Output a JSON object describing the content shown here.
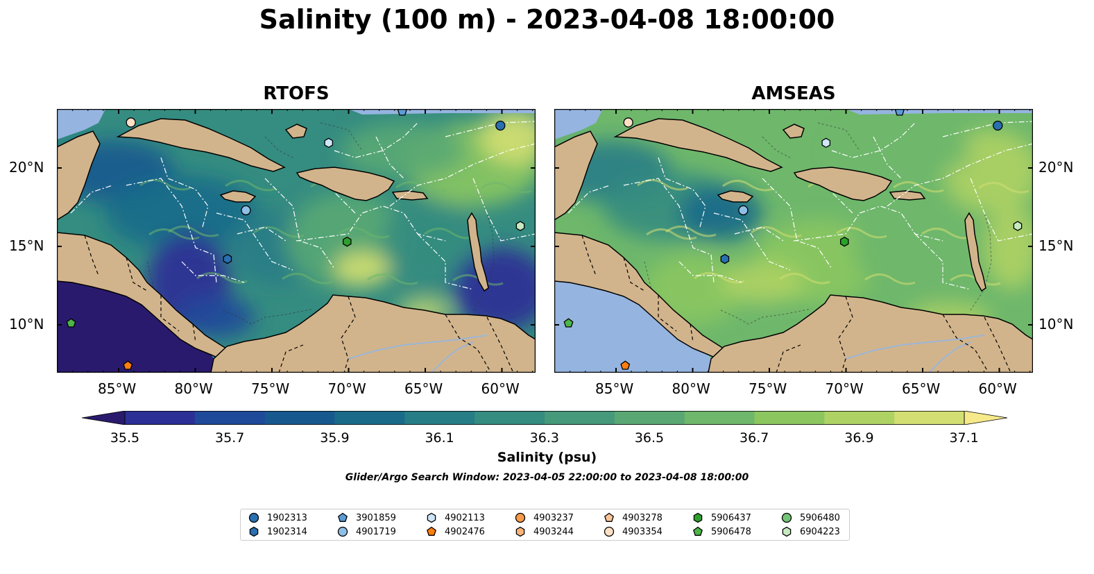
{
  "title": "Salinity (100 m) - 2023-04-08 18:00:00",
  "panels": [
    {
      "title": "RTOFS"
    },
    {
      "title": "AMSEAS"
    }
  ],
  "axes": {
    "x_ticks": [
      "85°W",
      "80°W",
      "75°W",
      "70°W",
      "65°W",
      "60°W"
    ],
    "y_ticks": [
      "20°N",
      "15°N",
      "10°N"
    ]
  },
  "colorbar": {
    "label": "Salinity (psu)",
    "ticks": [
      "35.5",
      "35.7",
      "35.9",
      "36.1",
      "36.3",
      "36.5",
      "36.7",
      "36.9",
      "37.1"
    ],
    "colors": [
      "#2a1a6e",
      "#2b2f96",
      "#1f4a9a",
      "#17598f",
      "#1a6b8a",
      "#277d86",
      "#358c80",
      "#46997a",
      "#59a874",
      "#6eb76b",
      "#8bc65f",
      "#aed264",
      "#d3df72",
      "#f6e98a"
    ]
  },
  "search_window": "Glider/Argo Search Window: 2023-04-05 22:00:00 to 2023-04-08 18:00:00",
  "legend": [
    {
      "label": "1902313",
      "shape": "circle",
      "color": "#2a6fb0"
    },
    {
      "label": "1902314",
      "shape": "hexagon",
      "color": "#2a6fb0"
    },
    {
      "label": "3901859",
      "shape": "pentagon",
      "color": "#5c9bd6"
    },
    {
      "label": "4901719",
      "shape": "circle",
      "color": "#8fbfe6"
    },
    {
      "label": "4902113",
      "shape": "hexagon",
      "color": "#cde6f8"
    },
    {
      "label": "4902476",
      "shape": "pentagon",
      "color": "#ff7f0e"
    },
    {
      "label": "4903237",
      "shape": "circle",
      "color": "#f79a4a"
    },
    {
      "label": "4903244",
      "shape": "hexagon",
      "color": "#fbb37a"
    },
    {
      "label": "4903278",
      "shape": "pentagon",
      "color": "#fbc497"
    },
    {
      "label": "4903354",
      "shape": "circle",
      "color": "#fde0c5"
    },
    {
      "label": "5906437",
      "shape": "hexagon",
      "color": "#2ca02c"
    },
    {
      "label": "5906478",
      "shape": "pentagon",
      "color": "#4cb648"
    },
    {
      "label": "5906480",
      "shape": "circle",
      "color": "#74c476"
    },
    {
      "label": "6904223",
      "shape": "hexagon",
      "color": "#c7e9c0"
    }
  ]
}
